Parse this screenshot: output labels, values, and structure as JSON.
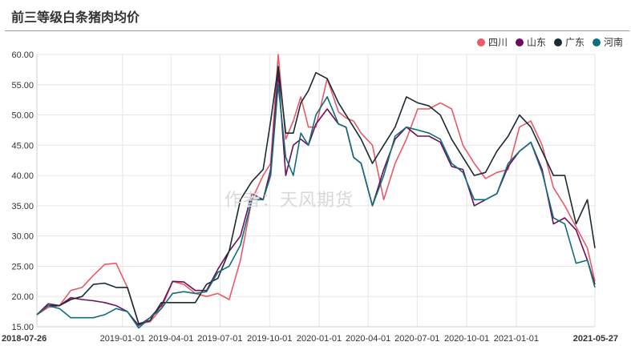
{
  "title": "前三等级白条猪肉均价",
  "watermark": "作者：天风期货",
  "chart_data": {
    "type": "line",
    "ylim": [
      15,
      60
    ],
    "yticks": [
      "15.00",
      "20.00",
      "25.00",
      "30.00",
      "35.00",
      "40.00",
      "45.00",
      "50.00",
      "55.00",
      "60.00"
    ],
    "x_start": "2018-07-26",
    "x_end": "2021-05-27",
    "xticks": [
      {
        "date": "2018-07-26",
        "label": "2018-07-26",
        "bold": true
      },
      {
        "date": "2019-01-01",
        "label": "2019-01-01",
        "bold": false
      },
      {
        "date": "2019-04-01",
        "label": "2019-04-01",
        "bold": false
      },
      {
        "date": "2019-07-01",
        "label": "2019-07-01",
        "bold": false
      },
      {
        "date": "2019-10-01",
        "label": "2019-10-01",
        "bold": false
      },
      {
        "date": "2020-01-01",
        "label": "2020-01-01",
        "bold": false
      },
      {
        "date": "2020-04-01",
        "label": "2020-04-01",
        "bold": false
      },
      {
        "date": "2020-07-01",
        "label": "2020-07-01",
        "bold": false
      },
      {
        "date": "2020-10-01",
        "label": "2020-10-01",
        "bold": false
      },
      {
        "date": "2021-01-01",
        "label": "2021-01-01",
        "bold": false
      },
      {
        "date": "2021-05-27",
        "label": "2021-05-27",
        "bold": true
      }
    ],
    "grid": true,
    "legend_position": "top-right",
    "series": [
      {
        "name": "四川",
        "color": "#e85a66",
        "dates": [
          "2018-07-26",
          "2018-08-16",
          "2018-09-06",
          "2018-09-27",
          "2018-10-18",
          "2018-11-08",
          "2018-11-29",
          "2018-12-20",
          "2019-01-10",
          "2019-01-31",
          "2019-02-21",
          "2019-03-14",
          "2019-04-04",
          "2019-04-25",
          "2019-05-16",
          "2019-06-06",
          "2019-06-27",
          "2019-07-18",
          "2019-08-08",
          "2019-08-29",
          "2019-09-19",
          "2019-10-03",
          "2019-10-17",
          "2019-10-31",
          "2019-11-14",
          "2019-11-28",
          "2019-12-12",
          "2019-12-26",
          "2020-01-16",
          "2020-02-06",
          "2020-02-20",
          "2020-03-05",
          "2020-03-19",
          "2020-04-09",
          "2020-04-30",
          "2020-05-21",
          "2020-06-11",
          "2020-07-02",
          "2020-07-23",
          "2020-08-13",
          "2020-09-03",
          "2020-09-24",
          "2020-10-15",
          "2020-11-05",
          "2020-11-26",
          "2020-12-17",
          "2021-01-07",
          "2021-01-28",
          "2021-02-18",
          "2021-03-11",
          "2021-04-01",
          "2021-04-22",
          "2021-05-13",
          "2021-05-27"
        ],
        "values": [
          17.0,
          18.2,
          18.5,
          21.0,
          21.5,
          23.5,
          25.3,
          25.5,
          21.5,
          15.5,
          15.8,
          18.0,
          22.5,
          22.0,
          20.5,
          20.0,
          20.5,
          19.5,
          26.0,
          36.0,
          40.0,
          42.0,
          60.0,
          46.0,
          49.0,
          53.0,
          48.0,
          48.0,
          56.0,
          50.5,
          49.5,
          49.0,
          47.0,
          45.0,
          36.0,
          42.0,
          46.0,
          51.0,
          51.0,
          52.0,
          51.0,
          45.0,
          42.0,
          39.5,
          40.5,
          41.0,
          48.0,
          49.0,
          45.0,
          38.0,
          35.0,
          31.5,
          28.0,
          22.5
        ]
      },
      {
        "name": "山东",
        "color": "#6b0f5c",
        "dates": [
          "2018-07-26",
          "2018-08-16",
          "2018-09-06",
          "2018-09-27",
          "2018-10-18",
          "2018-11-08",
          "2018-11-29",
          "2018-12-20",
          "2019-01-10",
          "2019-01-31",
          "2019-02-21",
          "2019-03-14",
          "2019-04-04",
          "2019-04-25",
          "2019-05-16",
          "2019-06-06",
          "2019-06-27",
          "2019-07-18",
          "2019-08-08",
          "2019-08-29",
          "2019-09-19",
          "2019-10-03",
          "2019-10-17",
          "2019-10-31",
          "2019-11-14",
          "2019-11-28",
          "2019-12-12",
          "2019-12-26",
          "2020-01-16",
          "2020-02-06",
          "2020-02-20",
          "2020-03-05",
          "2020-03-19",
          "2020-04-09",
          "2020-04-30",
          "2020-05-21",
          "2020-06-11",
          "2020-07-02",
          "2020-07-23",
          "2020-08-13",
          "2020-09-03",
          "2020-09-24",
          "2020-10-15",
          "2020-11-05",
          "2020-11-26",
          "2020-12-17",
          "2021-01-07",
          "2021-01-28",
          "2021-02-18",
          "2021-03-11",
          "2021-04-01",
          "2021-04-22",
          "2021-05-13",
          "2021-05-27"
        ],
        "values": [
          17.0,
          18.8,
          18.5,
          19.8,
          19.5,
          19.3,
          19.0,
          18.5,
          17.5,
          15.2,
          16.5,
          18.5,
          22.5,
          22.4,
          21.0,
          21.0,
          24.5,
          27.5,
          30.0,
          37.0,
          36.0,
          41.0,
          57.0,
          40.0,
          45.0,
          46.0,
          45.0,
          48.5,
          51.0,
          48.5,
          48.0,
          43.0,
          42.0,
          35.0,
          41.0,
          46.0,
          48.0,
          46.5,
          46.5,
          45.5,
          41.5,
          41.0,
          35.0,
          36.0,
          37.0,
          41.5,
          44.0,
          45.5,
          41.0,
          32.0,
          33.0,
          31.0,
          26.0,
          22.0
        ]
      },
      {
        "name": "广东",
        "color": "#1b2a33",
        "dates": [
          "2018-07-26",
          "2018-08-16",
          "2018-09-06",
          "2018-09-27",
          "2018-10-18",
          "2018-11-08",
          "2018-11-29",
          "2018-12-20",
          "2019-01-10",
          "2019-01-31",
          "2019-02-21",
          "2019-03-14",
          "2019-04-04",
          "2019-04-25",
          "2019-05-16",
          "2019-06-06",
          "2019-06-27",
          "2019-07-18",
          "2019-08-08",
          "2019-08-29",
          "2019-09-19",
          "2019-10-03",
          "2019-10-17",
          "2019-10-31",
          "2019-11-14",
          "2019-11-28",
          "2019-12-12",
          "2019-12-26",
          "2020-01-16",
          "2020-02-06",
          "2020-02-20",
          "2020-03-05",
          "2020-03-19",
          "2020-04-09",
          "2020-04-30",
          "2020-05-21",
          "2020-06-11",
          "2020-07-02",
          "2020-07-23",
          "2020-08-13",
          "2020-09-03",
          "2020-09-24",
          "2020-10-15",
          "2020-11-05",
          "2020-11-26",
          "2020-12-17",
          "2021-01-07",
          "2021-01-28",
          "2021-02-18",
          "2021-03-11",
          "2021-04-01",
          "2021-04-22",
          "2021-05-13",
          "2021-05-27"
        ],
        "values": [
          17.0,
          18.5,
          18.5,
          19.5,
          20.0,
          22.0,
          22.2,
          21.5,
          21.5,
          15.5,
          16.0,
          19.0,
          19.0,
          19.0,
          19.0,
          22.0,
          23.0,
          27.5,
          36.0,
          39.0,
          41.0,
          49.0,
          58.0,
          47.0,
          47.0,
          52.0,
          54.0,
          57.0,
          56.0,
          52.0,
          50.0,
          48.0,
          46.0,
          42.0,
          45.0,
          48.0,
          53.0,
          52.0,
          51.5,
          50.0,
          46.0,
          43.0,
          40.0,
          40.5,
          44.0,
          46.5,
          50.0,
          48.0,
          44.0,
          40.0,
          40.0,
          32.0,
          36.0,
          28.0
        ]
      },
      {
        "name": "河南",
        "color": "#0f6e7a",
        "dates": [
          "2018-07-26",
          "2018-08-16",
          "2018-09-06",
          "2018-09-27",
          "2018-10-18",
          "2018-11-08",
          "2018-11-29",
          "2018-12-20",
          "2019-01-10",
          "2019-01-31",
          "2019-02-21",
          "2019-03-14",
          "2019-04-04",
          "2019-04-25",
          "2019-05-16",
          "2019-06-06",
          "2019-06-27",
          "2019-07-18",
          "2019-08-08",
          "2019-08-29",
          "2019-09-19",
          "2019-10-03",
          "2019-10-17",
          "2019-10-31",
          "2019-11-14",
          "2019-11-28",
          "2019-12-12",
          "2019-12-26",
          "2020-01-16",
          "2020-02-06",
          "2020-02-20",
          "2020-03-05",
          "2020-03-19",
          "2020-04-09",
          "2020-04-30",
          "2020-05-21",
          "2020-06-11",
          "2020-07-02",
          "2020-07-23",
          "2020-08-13",
          "2020-09-03",
          "2020-09-24",
          "2020-10-15",
          "2020-11-05",
          "2020-11-26",
          "2020-12-17",
          "2021-01-07",
          "2021-01-28",
          "2021-02-18",
          "2021-03-11",
          "2021-04-01",
          "2021-04-22",
          "2021-05-13",
          "2021-05-27"
        ],
        "values": [
          17.0,
          18.5,
          18.0,
          16.5,
          16.5,
          16.5,
          17.0,
          18.0,
          17.5,
          14.8,
          16.5,
          18.0,
          20.5,
          20.8,
          20.5,
          20.8,
          24.0,
          25.0,
          28.5,
          36.0,
          36.0,
          40.0,
          55.0,
          43.0,
          40.0,
          47.0,
          45.0,
          50.0,
          53.0,
          48.5,
          48.0,
          43.0,
          42.0,
          35.0,
          40.0,
          46.5,
          48.0,
          47.5,
          47.0,
          46.0,
          42.0,
          40.5,
          36.0,
          36.0,
          37.0,
          42.0,
          44.0,
          45.5,
          40.5,
          33.0,
          32.0,
          25.5,
          26.0,
          21.5
        ]
      }
    ]
  }
}
